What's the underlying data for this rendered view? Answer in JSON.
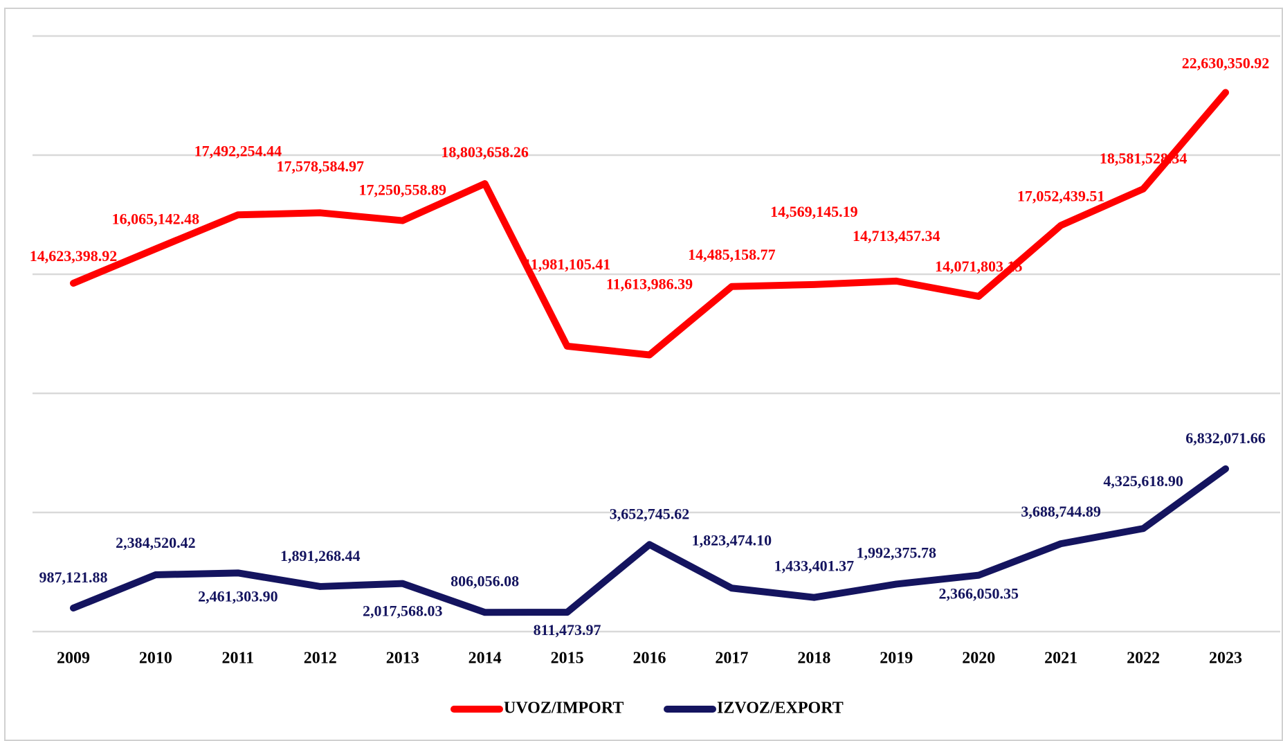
{
  "chart_data": {
    "type": "line",
    "categories": [
      "2009",
      "2010",
      "2011",
      "2012",
      "2013",
      "2014",
      "2015",
      "2016",
      "2017",
      "2018",
      "2019",
      "2020",
      "2021",
      "2022",
      "2023"
    ],
    "series": [
      {
        "name": "UVOZ/IMPORT",
        "color": "#ff0000",
        "values": [
          14623398.92,
          16065142.48,
          17492254.44,
          17578584.97,
          17250558.89,
          18803658.26,
          11981105.41,
          11613986.39,
          14485158.77,
          14569145.19,
          14713457.34,
          14071803.15,
          17052439.51,
          18581528.34,
          22630350.92
        ],
        "value_labels": [
          "14,623,398.92",
          "16,065,142.48",
          "17,492,254.44",
          "17,578,584.97",
          "17,250,558.89",
          "18,803,658.26",
          "11,981,105.41",
          "11,613,986.39",
          "14,485,158.77",
          "14,569,145.19",
          "14,713,457.34",
          "14,071,803.15",
          "17,052,439.51",
          "18,581,528.34",
          "22,630,350.92"
        ]
      },
      {
        "name": "IZVOZ/EXPORT",
        "color": "#14145f",
        "values": [
          987121.88,
          2384520.42,
          2461303.9,
          1891268.44,
          2017568.03,
          806056.08,
          811473.97,
          3652745.62,
          1823474.1,
          1433401.37,
          1992375.78,
          2366050.35,
          3688744.89,
          4325618.9,
          6832071.66
        ],
        "value_labels": [
          "987,121.88",
          "2,384,520.42",
          "2,461,303.90",
          "1,891,268.44",
          "2,017,568.03",
          "806,056.08",
          "811,473.97",
          "3,652,745.62",
          "1,823,474.10",
          "1,433,401.37",
          "1,992,375.78",
          "2,366,050.35",
          "3,688,744.89",
          "4,325,618.90",
          "6,832,071.66"
        ]
      }
    ],
    "ylim": [
      0,
      25000000
    ],
    "yticks": [
      0,
      5000000,
      10000000,
      15000000,
      20000000,
      25000000
    ],
    "grid": true,
    "legend": "bottom"
  }
}
